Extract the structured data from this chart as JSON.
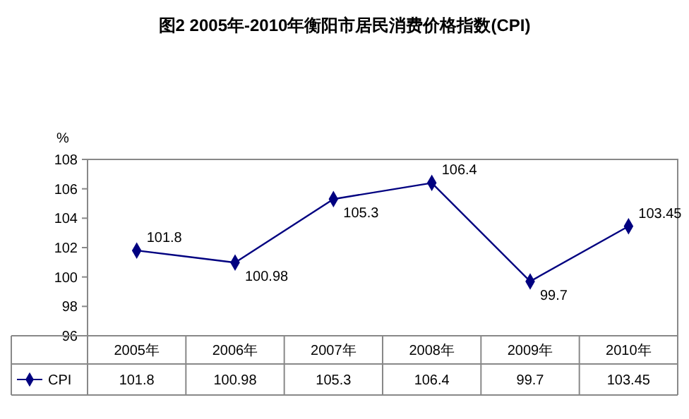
{
  "chart_data": {
    "type": "line",
    "title": "图2  2005年-2010年衡阳市居民消费价格指数(CPI)",
    "ylabel": "%",
    "categories": [
      "2005年",
      "2006年",
      "2007年",
      "2008年",
      "2009年",
      "2010年"
    ],
    "series": [
      {
        "name": "CPI",
        "color": "#000080",
        "values": [
          101.8,
          100.98,
          105.3,
          106.4,
          99.7,
          103.45
        ]
      }
    ],
    "annotations": [
      {
        "text": "101.8",
        "x": "2005年",
        "y": 101.8
      },
      {
        "text": "100.98",
        "x": "2006年",
        "y": 100.98
      },
      {
        "text": "105.3",
        "x": "2007年",
        "y": 105.3
      },
      {
        "text": "106.4",
        "x": "2008年",
        "y": 106.4
      },
      {
        "text": "99.7",
        "x": "2009年",
        "y": 99.7
      },
      {
        "text": "103.45",
        "x": "2010年",
        "y": 103.45
      }
    ],
    "ylim": [
      96,
      108
    ],
    "yticks": [
      96,
      98,
      100,
      102,
      104,
      106,
      108
    ],
    "grid": false,
    "legend": "bottom",
    "marker": "diamond",
    "line_style": "solid",
    "data_labels": true
  }
}
